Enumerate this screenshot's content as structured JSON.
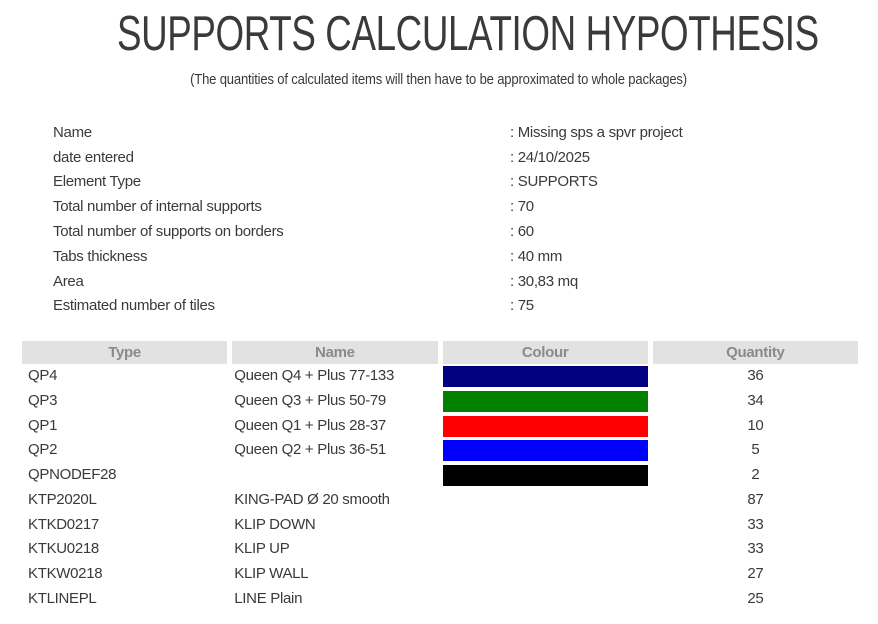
{
  "page": {
    "title": "SUPPORTS CALCULATION HYPOTHESIS",
    "subtitle": "(The quantities of calculated items will then have to be approximated to whole packages)"
  },
  "info": [
    {
      "label": "Name",
      "value": ": Missing sps a spvr project"
    },
    {
      "label": "date entered",
      "value": ": 24/10/2025"
    },
    {
      "label": "Element Type",
      "value": ": SUPPORTS"
    },
    {
      "label": "Total number of internal supports",
      "value": ": 70"
    },
    {
      "label": "Total number of supports on borders",
      "value": ": 60"
    },
    {
      "label": "Tabs thickness",
      "value": ": 40 mm"
    },
    {
      "label": "Area",
      "value": ": 30,83 mq"
    },
    {
      "label": "Estimated number of tiles",
      "value": ": 75"
    }
  ],
  "table": {
    "headers": [
      "Type",
      "Name",
      "Colour",
      "Quantity"
    ],
    "rows": [
      {
        "type": "QP4",
        "name": "Queen Q4 + Plus 77-133",
        "colour": "#000080",
        "quantity": "36"
      },
      {
        "type": "QP3",
        "name": "Queen Q3 + Plus 50-79",
        "colour": "#008000",
        "quantity": "34"
      },
      {
        "type": "QP1",
        "name": "Queen Q1 + Plus 28-37",
        "colour": "#ff0000",
        "quantity": "10"
      },
      {
        "type": "QP2",
        "name": "Queen Q2 + Plus 36-51",
        "colour": "#0000ff",
        "quantity": "5"
      },
      {
        "type": "QPNODEF28",
        "name": "",
        "colour": "#000000",
        "quantity": "2"
      },
      {
        "type": "KTP2020L",
        "name": "KING-PAD Ø 20 smooth",
        "colour": null,
        "quantity": "87"
      },
      {
        "type": "KTKD0217",
        "name": "KLIP DOWN",
        "colour": null,
        "quantity": "33"
      },
      {
        "type": "KTKU0218",
        "name": "KLIP UP",
        "colour": null,
        "quantity": "33"
      },
      {
        "type": "KTKW0218",
        "name": "KLIP WALL",
        "colour": null,
        "quantity": "27"
      },
      {
        "type": "KTLINEPL",
        "name": "LINE Plain",
        "colour": null,
        "quantity": "25"
      }
    ]
  },
  "colors": {
    "text": "#3a3a3a",
    "header_bg": "#e2e2e2",
    "header_text": "#8a8a8a"
  }
}
